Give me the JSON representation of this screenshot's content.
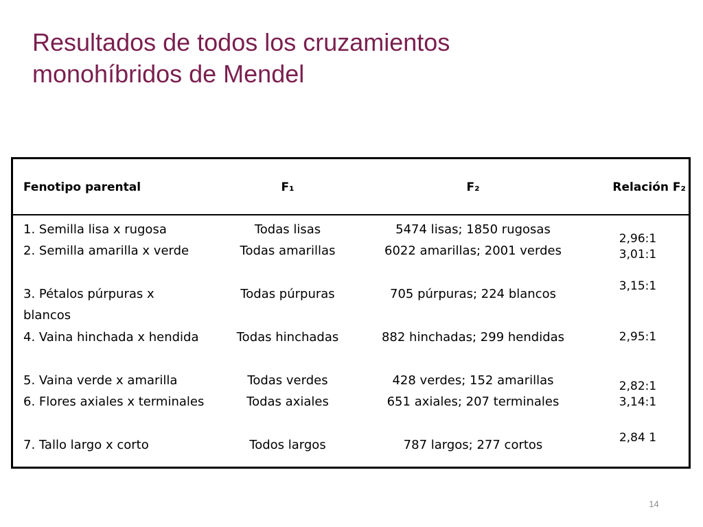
{
  "slide": {
    "title_line1": "Resultados de todos los cruzamientos",
    "title_line2": "monohíbridos de Mendel",
    "page_number": "14"
  },
  "table": {
    "headers": {
      "fenotipo": "Fenotipo parental",
      "f1": "F₁",
      "f2": "F₂",
      "relacion": "Relación F₂"
    },
    "rows": [
      {
        "fenotipo": "1. Semilla lisa x rugosa",
        "f1": "Todas lisas",
        "f2": "5474 lisas; 1850 rugosas",
        "relacion": "2,96:1"
      },
      {
        "fenotipo": "2. Semilla amarilla x verde",
        "f1": "Todas amarillas",
        "f2": "6022 amarillas; 2001 verdes",
        "relacion": "3,01:1"
      },
      {
        "fenotipo": "3. Pétalos púrpuras x blancos",
        "f1": "Todas púrpuras",
        "f2": "705 púrpuras; 224 blancos",
        "relacion": "3,15:1"
      },
      {
        "fenotipo": "4. Vaina hinchada x hendida",
        "f1": "Todas hinchadas",
        "f2": "882 hinchadas; 299 hendidas",
        "relacion": "2,95:1"
      },
      {
        "fenotipo": "5. Vaina verde x amarilla",
        "f1": "Todas verdes",
        "f2": "428 verdes; 152 amarillas",
        "relacion": "2,82:1"
      },
      {
        "fenotipo": "6. Flores axiales x terminales",
        "f1": "Todas axiales",
        "f2": "651 axiales; 207 terminales",
        "relacion": "3,14:1"
      },
      {
        "fenotipo": "7. Tallo largo x corto",
        "f1": "Todos largos",
        "f2": "787 largos; 277 cortos",
        "relacion": "2,84 1"
      }
    ]
  },
  "colors": {
    "title": "#7a1f4e",
    "text": "#000000",
    "page_number": "#8c8c8c"
  }
}
